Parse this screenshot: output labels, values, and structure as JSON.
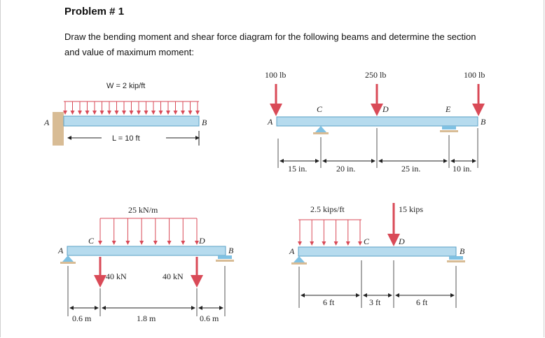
{
  "problem_title": "Problem # 1",
  "instruction": "Draw the bending moment and shear force diagram for the following beams and determine the section and value of maximum moment:",
  "beam1": {
    "load": "W = 2 kip/ft",
    "length": "L = 10 ft",
    "label_a": "A",
    "label_b": "B"
  },
  "beam2": {
    "loads": [
      "100 lb",
      "250 lb",
      "100 lb"
    ],
    "labels": [
      "A",
      "C",
      "D",
      "E",
      "B"
    ],
    "dims": [
      "15 in.",
      "20 in.",
      "25 in.",
      "10 in."
    ]
  },
  "beam3": {
    "dist_load": "25 kN/m",
    "point_loads": [
      "40 kN",
      "40 kN"
    ],
    "labels": [
      "A",
      "C",
      "D",
      "B"
    ],
    "dims": [
      "0.6 m",
      "1.8 m",
      "0.6 m"
    ]
  },
  "beam4": {
    "dist_load": "2.5 kips/ft",
    "point_load": "15 kips",
    "labels": [
      "A",
      "C",
      "D",
      "B"
    ],
    "dims": [
      "6 ft",
      "3 ft",
      "6 ft"
    ]
  },
  "colors": {
    "beam": "#b6dbee",
    "load": "#d94a57",
    "support": "#7fc1e3"
  }
}
